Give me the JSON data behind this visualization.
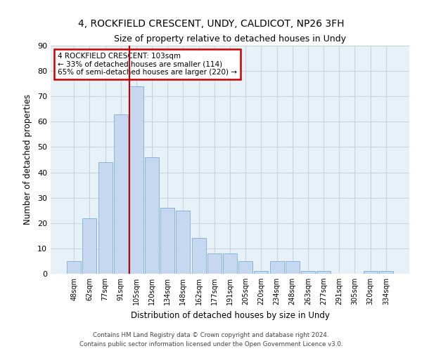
{
  "title1": "4, ROCKFIELD CRESCENT, UNDY, CALDICOT, NP26 3FH",
  "title2": "Size of property relative to detached houses in Undy",
  "xlabel": "Distribution of detached houses by size in Undy",
  "ylabel": "Number of detached properties",
  "bar_labels": [
    "48sqm",
    "62sqm",
    "77sqm",
    "91sqm",
    "105sqm",
    "120sqm",
    "134sqm",
    "148sqm",
    "162sqm",
    "177sqm",
    "191sqm",
    "205sqm",
    "220sqm",
    "234sqm",
    "248sqm",
    "263sqm",
    "277sqm",
    "291sqm",
    "305sqm",
    "320sqm",
    "334sqm"
  ],
  "bar_values": [
    5,
    22,
    44,
    63,
    74,
    46,
    26,
    25,
    14,
    8,
    8,
    5,
    1,
    5,
    5,
    1,
    1,
    0,
    0,
    1,
    1
  ],
  "bar_color": "#c5d8f0",
  "bar_edge_color": "#7bafd4",
  "vline_index": 4,
  "vline_color": "#cc0000",
  "annotation_title": "4 ROCKFIELD CRESCENT: 103sqm",
  "annotation_line1": "← 33% of detached houses are smaller (114)",
  "annotation_line2": "65% of semi-detached houses are larger (220) →",
  "annotation_box_color": "#cc0000",
  "ylim": [
    0,
    90
  ],
  "yticks": [
    0,
    10,
    20,
    30,
    40,
    50,
    60,
    70,
    80,
    90
  ],
  "footer1": "Contains HM Land Registry data © Crown copyright and database right 2024.",
  "footer2": "Contains public sector information licensed under the Open Government Licence v3.0.",
  "bg_color": "#ffffff",
  "plot_bg_color": "#e8f0f8",
  "grid_color": "#c8d4e0"
}
